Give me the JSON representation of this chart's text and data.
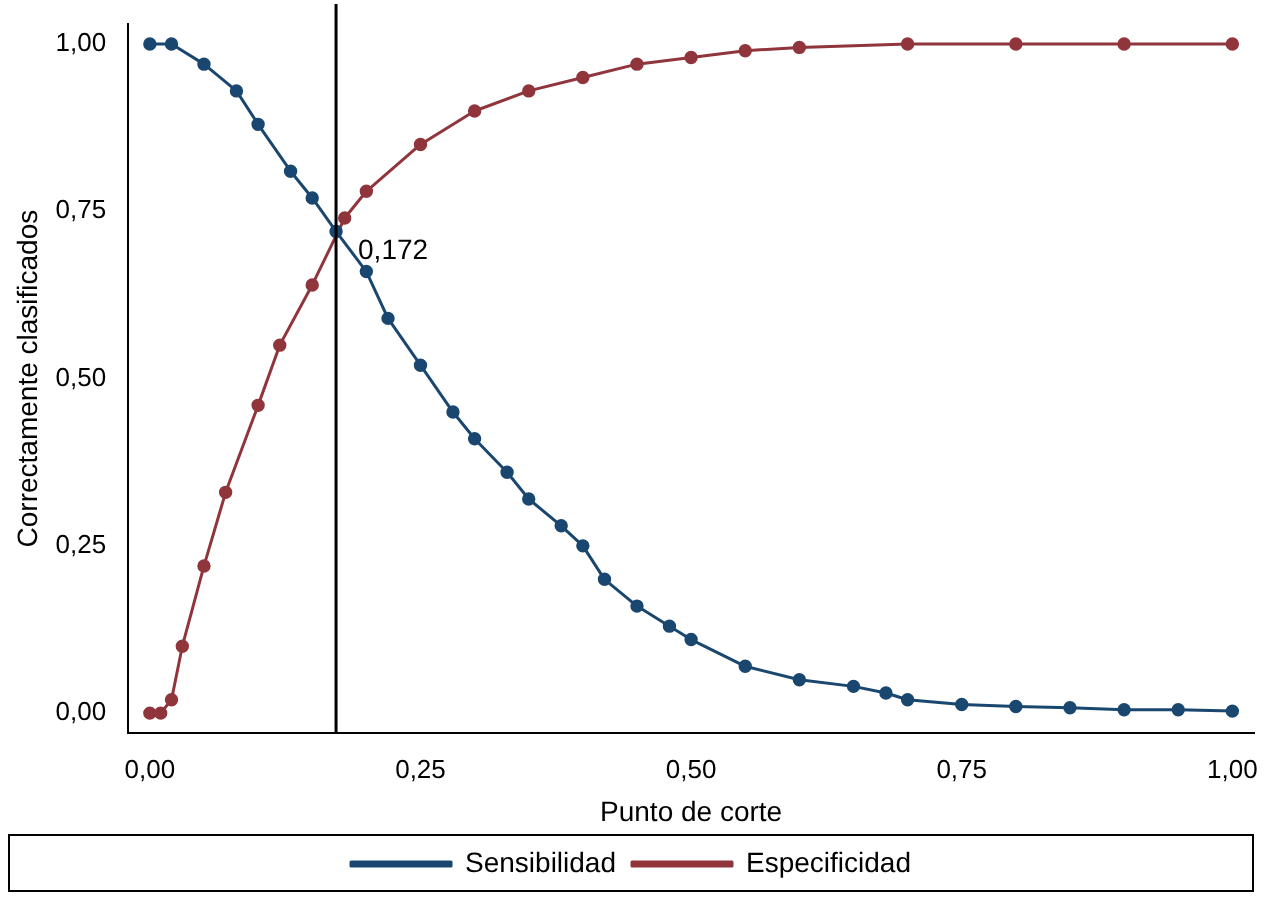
{
  "chart_data": {
    "type": "line",
    "xlabel": "Punto de corte",
    "ylabel": "Correctamente clasificados",
    "xlim": [
      -0.02,
      1.02
    ],
    "ylim": [
      -0.03,
      1.03
    ],
    "xticks": [
      {
        "value": 0,
        "label": "0,00"
      },
      {
        "value": 0.25,
        "label": "0,25"
      },
      {
        "value": 0.5,
        "label": "0,50"
      },
      {
        "value": 0.75,
        "label": "0,75"
      },
      {
        "value": 1,
        "label": "1,00"
      }
    ],
    "yticks": [
      {
        "value": 0,
        "label": "0,00"
      },
      {
        "value": 0.25,
        "label": "0,25"
      },
      {
        "value": 0.5,
        "label": "0,50"
      },
      {
        "value": 0.75,
        "label": "0,75"
      },
      {
        "value": 1,
        "label": "1,00"
      }
    ],
    "grid": false,
    "legend": "bottom",
    "marker": "circle",
    "line_style": "solid",
    "ref_lines": [
      {
        "axis": "x",
        "value": 0.172,
        "label": "0,172",
        "color": "#000000"
      }
    ],
    "series": [
      {
        "name": "Sensibilidad",
        "color": "#1a476f",
        "x": [
          0,
          0.02,
          0.05,
          0.08,
          0.1,
          0.13,
          0.15,
          0.172,
          0.2,
          0.22,
          0.25,
          0.28,
          0.3,
          0.33,
          0.35,
          0.38,
          0.4,
          0.42,
          0.45,
          0.48,
          0.5,
          0.55,
          0.6,
          0.65,
          0.68,
          0.7,
          0.75,
          0.8,
          0.85,
          0.9,
          0.95,
          1
        ],
        "values": [
          1,
          1,
          0.97,
          0.93,
          0.88,
          0.81,
          0.77,
          0.72,
          0.66,
          0.59,
          0.52,
          0.45,
          0.41,
          0.36,
          0.32,
          0.28,
          0.25,
          0.2,
          0.16,
          0.13,
          0.11,
          0.07,
          0.05,
          0.04,
          0.03,
          0.02,
          0.013,
          0.01,
          0.008,
          0.005,
          0.005,
          0.003
        ]
      },
      {
        "name": "Especificidad",
        "color": "#90353b",
        "x": [
          0,
          0.01,
          0.02,
          0.03,
          0.05,
          0.07,
          0.1,
          0.12,
          0.15,
          0.18,
          0.2,
          0.25,
          0.3,
          0.35,
          0.4,
          0.45,
          0.5,
          0.55,
          0.6,
          0.7,
          0.8,
          0.9,
          1
        ],
        "values": [
          0,
          0,
          0.02,
          0.1,
          0.22,
          0.33,
          0.46,
          0.55,
          0.64,
          0.74,
          0.78,
          0.85,
          0.9,
          0.93,
          0.95,
          0.97,
          0.98,
          0.99,
          0.995,
          1,
          1,
          1,
          1
        ]
      }
    ]
  }
}
